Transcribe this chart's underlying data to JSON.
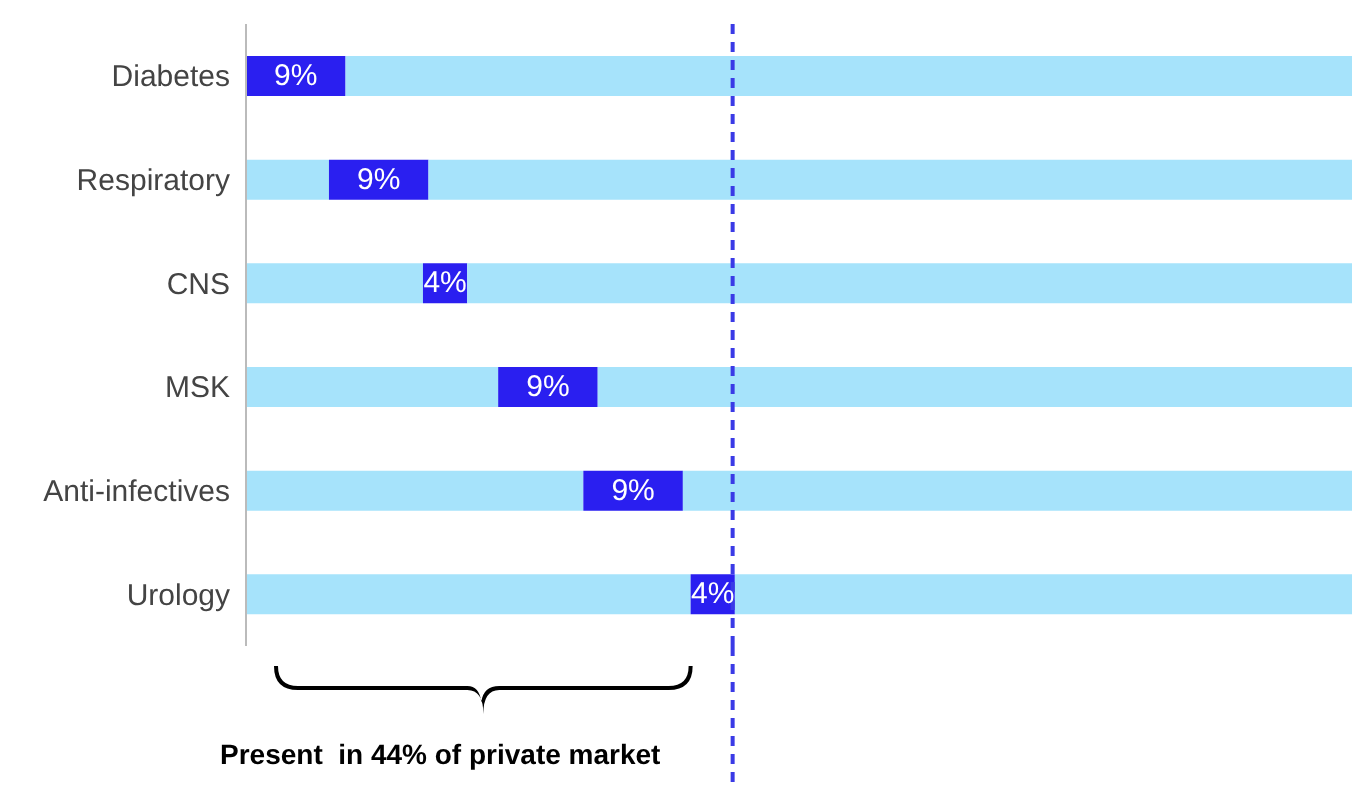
{
  "chart_data": {
    "type": "bar",
    "orientation": "horizontal",
    "stacked": true,
    "categories": [
      "Diabetes",
      "Respiratory",
      "CNS",
      "MSK",
      "Anti-infectives",
      "Urology"
    ],
    "series": [
      {
        "color": "#a6e3fb",
        "values": [
          0,
          7.5,
          16,
          22.8,
          30.5,
          40.2
        ]
      },
      {
        "color": "#2a1ff0",
        "values": [
          9,
          9,
          4,
          9,
          9,
          4
        ],
        "value_labels": [
          "9%",
          "9%",
          "4%",
          "9%",
          "9%",
          "4%"
        ]
      },
      {
        "color": "#a6e3fb",
        "values": [
          91,
          83.5,
          80,
          68.2,
          60.5,
          55.8
        ]
      }
    ],
    "xlim": [
      0,
      100
    ],
    "tick_labels": "y",
    "legend": false,
    "ref_lines": [
      {
        "axis": "x",
        "value": 44,
        "color": "#3a3ae6",
        "line_style": "dashed"
      }
    ],
    "annotations": [
      "Present  in 44% of private market"
    ]
  }
}
